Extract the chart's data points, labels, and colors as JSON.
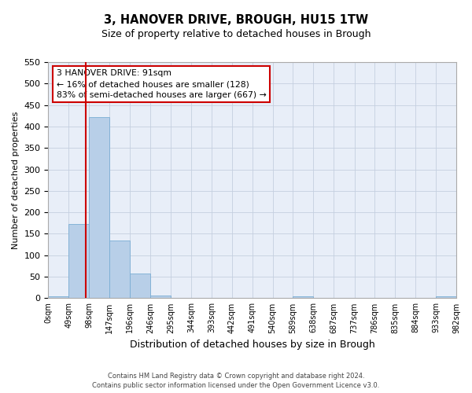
{
  "title": "3, HANOVER DRIVE, BROUGH, HU15 1TW",
  "subtitle": "Size of property relative to detached houses in Brough",
  "xlabel": "Distribution of detached houses by size in Brough",
  "ylabel": "Number of detached properties",
  "bin_edges": [
    0,
    49,
    98,
    147,
    196,
    246,
    295,
    344,
    393,
    442,
    491,
    540,
    589,
    638,
    687,
    737,
    786,
    835,
    884,
    933,
    982
  ],
  "bar_heights": [
    5,
    173,
    422,
    134,
    58,
    7,
    0,
    0,
    0,
    0,
    0,
    0,
    5,
    0,
    0,
    0,
    0,
    0,
    0,
    5
  ],
  "bar_color": "#b8cfe8",
  "bar_edgecolor": "#7aadd4",
  "tick_labels": [
    "0sqm",
    "49sqm",
    "98sqm",
    "147sqm",
    "196sqm",
    "246sqm",
    "295sqm",
    "344sqm",
    "393sqm",
    "442sqm",
    "491sqm",
    "540sqm",
    "589sqm",
    "638sqm",
    "687sqm",
    "737sqm",
    "786sqm",
    "835sqm",
    "884sqm",
    "933sqm",
    "982sqm"
  ],
  "ylim": [
    0,
    550
  ],
  "yticks": [
    0,
    50,
    100,
    150,
    200,
    250,
    300,
    350,
    400,
    450,
    500,
    550
  ],
  "vline_x": 91,
  "vline_color": "#cc0000",
  "annotation_line1": "3 HANOVER DRIVE: 91sqm",
  "annotation_line2": "← 16% of detached houses are smaller (128)",
  "annotation_line3": "83% of semi-detached houses are larger (667) →",
  "annotation_box_edgecolor": "#cc0000",
  "footer_line1": "Contains HM Land Registry data © Crown copyright and database right 2024.",
  "footer_line2": "Contains public sector information licensed under the Open Government Licence v3.0.",
  "background_color": "#e8eef8",
  "grid_color": "#c5cfe0",
  "fig_width": 6.0,
  "fig_height": 5.0,
  "dpi": 100
}
